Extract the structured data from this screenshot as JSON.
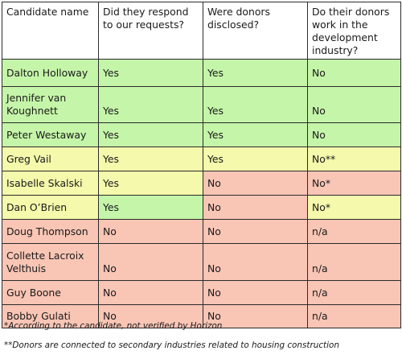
{
  "table": {
    "headers": [
      "Candidate name",
      "Did they respond to our requests?",
      "Were donors disclosed?",
      "Do their donors work in the development industry?"
    ],
    "rows": [
      {
        "name": "Dalton Holloway",
        "responded": "Yes",
        "disclosed": "Yes",
        "development": "No"
      },
      {
        "name": "Jennifer van Koughnett",
        "responded": "Yes",
        "disclosed": "Yes",
        "development": "No"
      },
      {
        "name": "Peter Westaway",
        "responded": "Yes",
        "disclosed": "Yes",
        "development": "No"
      },
      {
        "name": "Greg Vail",
        "responded": "Yes",
        "disclosed": "Yes",
        "development": "No**"
      },
      {
        "name": "Isabelle Skalski",
        "responded": "Yes",
        "disclosed": "No",
        "development": "No*"
      },
      {
        "name": "Dan O’Brien",
        "responded": "Yes",
        "disclosed": "No",
        "development": "No*"
      },
      {
        "name": "Doug Thompson",
        "responded": "No",
        "disclosed": "No",
        "development": "n/a"
      },
      {
        "name": "Collette Lacroix Velthuis",
        "responded": "No",
        "disclosed": "No",
        "development": "n/a"
      },
      {
        "name": "Guy Boone",
        "responded": "No",
        "disclosed": "No",
        "development": "n/a"
      },
      {
        "name": "Bobby Gulati",
        "responded": "No",
        "disclosed": "No",
        "development": "n/a"
      }
    ]
  },
  "colors": {
    "green": "#c5f5a9",
    "yellow": "#f4f9ab",
    "red": "#f9c5b5",
    "border": "#2b2b2b"
  },
  "footnotes": [
    "*According to the candidate, not verified by Horizon",
    "**Donors are connected to secondary industries related to housing construction"
  ]
}
